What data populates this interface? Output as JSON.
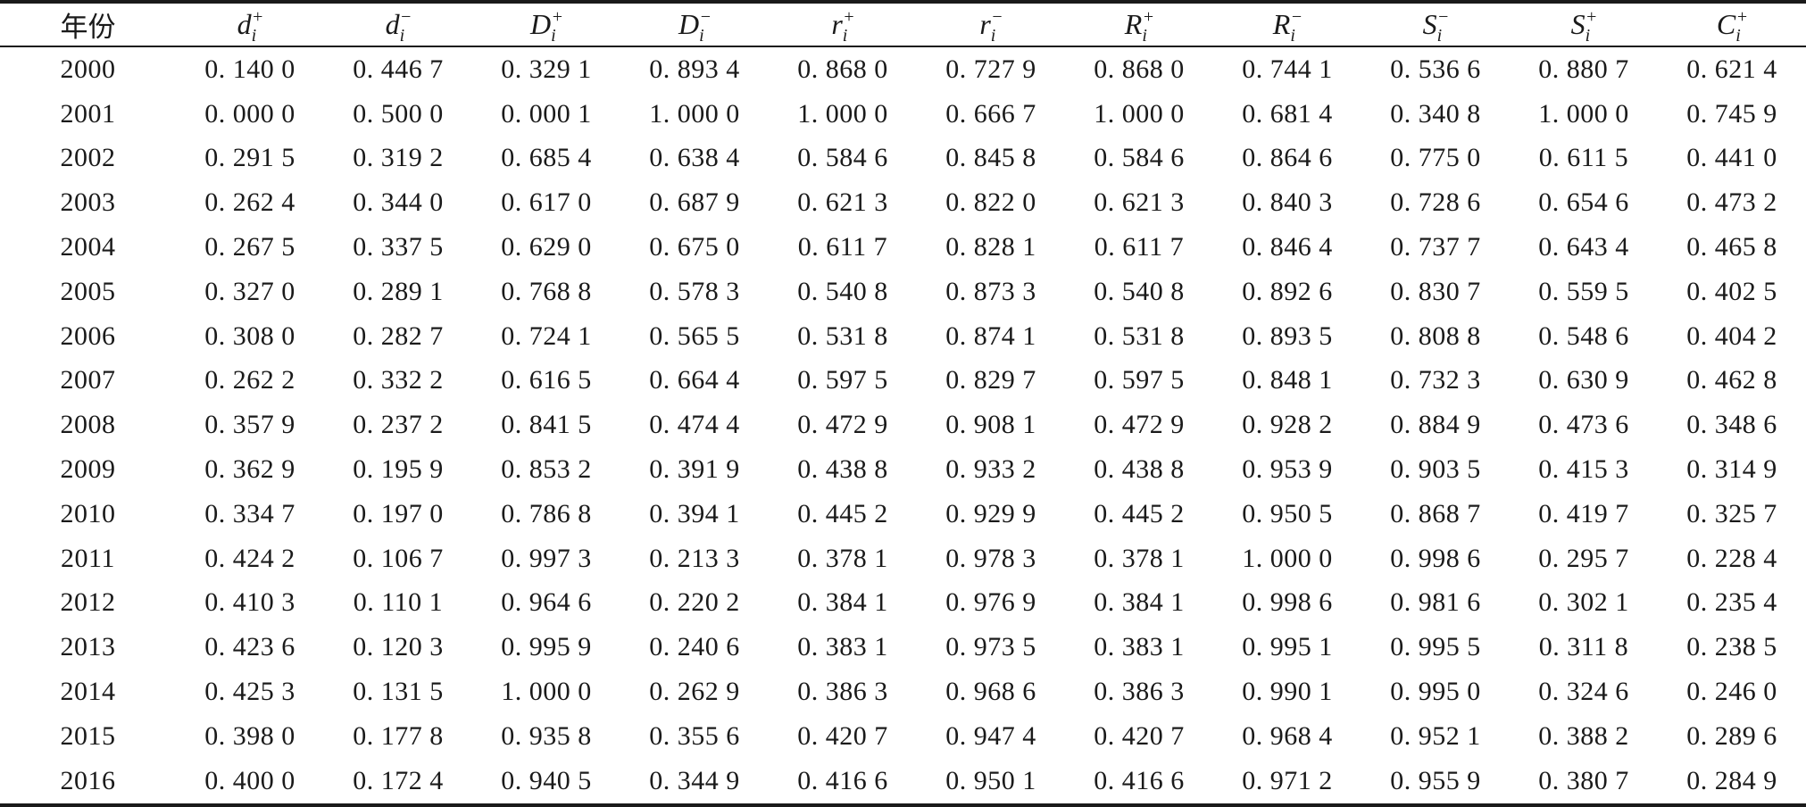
{
  "table": {
    "columns": [
      {
        "label": "年份"
      },
      {
        "sym": "d",
        "sub": "i",
        "sup": "+"
      },
      {
        "sym": "d",
        "sub": "i",
        "sup": "−"
      },
      {
        "sym": "D",
        "sub": "i",
        "sup": "+"
      },
      {
        "sym": "D",
        "sub": "i",
        "sup": "−"
      },
      {
        "sym": "r",
        "sub": "i",
        "sup": "+"
      },
      {
        "sym": "r",
        "sub": "i",
        "sup": "−"
      },
      {
        "sym": "R",
        "sub": "i",
        "sup": "+"
      },
      {
        "sym": "R",
        "sub": "i",
        "sup": "−"
      },
      {
        "sym": "S",
        "sub": "i",
        "sup": "−"
      },
      {
        "sym": "S",
        "sub": "i",
        "sup": "+"
      },
      {
        "sym": "C",
        "sub": "i",
        "sup": "+"
      }
    ],
    "rows": [
      [
        "2000",
        "0. 140 0",
        "0. 446 7",
        "0. 329 1",
        "0. 893 4",
        "0. 868 0",
        "0. 727 9",
        "0. 868 0",
        "0. 744 1",
        "0. 536 6",
        "0. 880 7",
        "0. 621 4"
      ],
      [
        "2001",
        "0. 000 0",
        "0. 500 0",
        "0. 000 1",
        "1. 000 0",
        "1. 000 0",
        "0. 666 7",
        "1. 000 0",
        "0. 681 4",
        "0. 340 8",
        "1. 000 0",
        "0. 745 9"
      ],
      [
        "2002",
        "0. 291 5",
        "0. 319 2",
        "0. 685 4",
        "0. 638 4",
        "0. 584 6",
        "0. 845 8",
        "0. 584 6",
        "0. 864 6",
        "0. 775 0",
        "0. 611 5",
        "0. 441 0"
      ],
      [
        "2003",
        "0. 262 4",
        "0. 344 0",
        "0. 617 0",
        "0. 687 9",
        "0. 621 3",
        "0. 822 0",
        "0. 621 3",
        "0. 840 3",
        "0. 728 6",
        "0. 654 6",
        "0. 473 2"
      ],
      [
        "2004",
        "0. 267 5",
        "0. 337 5",
        "0. 629 0",
        "0. 675 0",
        "0. 611 7",
        "0. 828 1",
        "0. 611 7",
        "0. 846 4",
        "0. 737 7",
        "0. 643 4",
        "0. 465 8"
      ],
      [
        "2005",
        "0. 327 0",
        "0. 289 1",
        "0. 768 8",
        "0. 578 3",
        "0. 540 8",
        "0. 873 3",
        "0. 540 8",
        "0. 892 6",
        "0. 830 7",
        "0. 559 5",
        "0. 402 5"
      ],
      [
        "2006",
        "0. 308 0",
        "0. 282 7",
        "0. 724 1",
        "0. 565 5",
        "0. 531 8",
        "0. 874 1",
        "0. 531 8",
        "0. 893 5",
        "0. 808 8",
        "0. 548 6",
        "0. 404 2"
      ],
      [
        "2007",
        "0. 262 2",
        "0. 332 2",
        "0. 616 5",
        "0. 664 4",
        "0. 597 5",
        "0. 829 7",
        "0. 597 5",
        "0. 848 1",
        "0. 732 3",
        "0. 630 9",
        "0. 462 8"
      ],
      [
        "2008",
        "0. 357 9",
        "0. 237 2",
        "0. 841 5",
        "0. 474 4",
        "0. 472 9",
        "0. 908 1",
        "0. 472 9",
        "0. 928 2",
        "0. 884 9",
        "0. 473 6",
        "0. 348 6"
      ],
      [
        "2009",
        "0. 362 9",
        "0. 195 9",
        "0. 853 2",
        "0. 391 9",
        "0. 438 8",
        "0. 933 2",
        "0. 438 8",
        "0. 953 9",
        "0. 903 5",
        "0. 415 3",
        "0. 314 9"
      ],
      [
        "2010",
        "0. 334 7",
        "0. 197 0",
        "0. 786 8",
        "0. 394 1",
        "0. 445 2",
        "0. 929 9",
        "0. 445 2",
        "0. 950 5",
        "0. 868 7",
        "0. 419 7",
        "0. 325 7"
      ],
      [
        "2011",
        "0. 424 2",
        "0. 106 7",
        "0. 997 3",
        "0. 213 3",
        "0. 378 1",
        "0. 978 3",
        "0. 378 1",
        "1. 000 0",
        "0. 998 6",
        "0. 295 7",
        "0. 228 4"
      ],
      [
        "2012",
        "0. 410 3",
        "0. 110 1",
        "0. 964 6",
        "0. 220 2",
        "0. 384 1",
        "0. 976 9",
        "0. 384 1",
        "0. 998 6",
        "0. 981 6",
        "0. 302 1",
        "0. 235 4"
      ],
      [
        "2013",
        "0. 423 6",
        "0. 120 3",
        "0. 995 9",
        "0. 240 6",
        "0. 383 1",
        "0. 973 5",
        "0. 383 1",
        "0. 995 1",
        "0. 995 5",
        "0. 311 8",
        "0. 238 5"
      ],
      [
        "2014",
        "0. 425 3",
        "0. 131 5",
        "1. 000 0",
        "0. 262 9",
        "0. 386 3",
        "0. 968 6",
        "0. 386 3",
        "0. 990 1",
        "0. 995 0",
        "0. 324 6",
        "0. 246 0"
      ],
      [
        "2015",
        "0. 398 0",
        "0. 177 8",
        "0. 935 8",
        "0. 355 6",
        "0. 420 7",
        "0. 947 4",
        "0. 420 7",
        "0. 968 4",
        "0. 952 1",
        "0. 388 2",
        "0. 289 6"
      ],
      [
        "2016",
        "0. 400 0",
        "0. 172 4",
        "0. 940 5",
        "0. 344 9",
        "0. 416 6",
        "0. 950 1",
        "0. 416 6",
        "0. 971 2",
        "0. 955 9",
        "0. 380 7",
        "0. 284 9"
      ]
    ]
  }
}
